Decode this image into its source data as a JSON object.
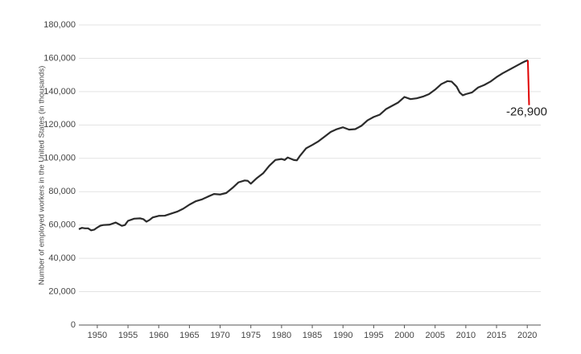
{
  "chart_data": {
    "type": "line",
    "y_label": "Number of employed workers in the United States (in thousands)",
    "annotation": "-26,900",
    "series": [
      {
        "color": "#2b2b2b",
        "x": [
          1947,
          1947.5,
          1948,
          1948.5,
          1949,
          1949.5,
          1950,
          1950.5,
          1951,
          1952,
          1953,
          1953.5,
          1954,
          1954.5,
          1955,
          1956,
          1957,
          1957.5,
          1958,
          1958.5,
          1959,
          1960,
          1961,
          1962,
          1963,
          1964,
          1965,
          1966,
          1967,
          1968,
          1969,
          1970,
          1971,
          1972,
          1973,
          1974,
          1974.5,
          1975,
          1976,
          1977,
          1978,
          1979,
          1980,
          1980.5,
          1981,
          1982,
          1982.5,
          1983,
          1984,
          1985,
          1986,
          1987,
          1988,
          1989,
          1990,
          1991,
          1992,
          1993,
          1994,
          1995,
          1996,
          1997,
          1998,
          1999,
          2000,
          2001,
          2002,
          2003,
          2004,
          2005,
          2006,
          2007,
          2007.7,
          2008.5,
          2009,
          2009.5,
          2010,
          2011,
          2012,
          2013,
          2014,
          2015,
          2016,
          2017,
          2018,
          2019,
          2019.6,
          2020.1
        ],
        "values": [
          57500,
          58300,
          58000,
          58000,
          56800,
          57200,
          58500,
          59600,
          60000,
          60200,
          61500,
          60500,
          59500,
          60000,
          62500,
          63800,
          64000,
          63500,
          62000,
          63000,
          64500,
          65500,
          65600,
          66800,
          68000,
          69800,
          72200,
          74200,
          75300,
          77000,
          78600,
          78300,
          79200,
          82200,
          85600,
          86700,
          86500,
          84800,
          88200,
          91000,
          95500,
          99000,
          99600,
          99000,
          100500,
          99000,
          98800,
          101500,
          106000,
          108000,
          110200,
          113000,
          115800,
          117500,
          118600,
          117200,
          117500,
          119500,
          122800,
          124800,
          126200,
          129500,
          131500,
          133500,
          136800,
          135500,
          136000,
          137000,
          138500,
          141200,
          144500,
          146300,
          146000,
          143000,
          139500,
          137800,
          138500,
          139500,
          142500,
          144000,
          146000,
          148700,
          151000,
          153000,
          155000,
          157000,
          158100,
          158800
        ]
      },
      {
        "color": "#e00000",
        "x": [
          2020.1,
          2020.3
        ],
        "values": [
          158800,
          131900
        ]
      }
    ],
    "xlim": [
      1947,
      2022.2
    ],
    "ylim": [
      0,
      180000
    ],
    "xticks": [
      1950,
      1955,
      1960,
      1965,
      1970,
      1975,
      1980,
      1985,
      1990,
      1995,
      2000,
      2005,
      2010,
      2015,
      2020
    ],
    "yticks": [
      0,
      {
        "value": 20000,
        "label": "20,000"
      },
      {
        "value": 40000,
        "label": "40,000"
      },
      {
        "value": 60000,
        "label": "60,000"
      },
      {
        "value": 80000,
        "label": "80,000"
      },
      {
        "value": 100000,
        "label": "100,000"
      },
      {
        "value": 120000,
        "label": "120,000"
      },
      {
        "value": 140000,
        "label": "140,000"
      },
      {
        "value": 160000,
        "label": "160,000"
      },
      {
        "value": 180000,
        "label": "180,000"
      }
    ],
    "grid": true
  }
}
